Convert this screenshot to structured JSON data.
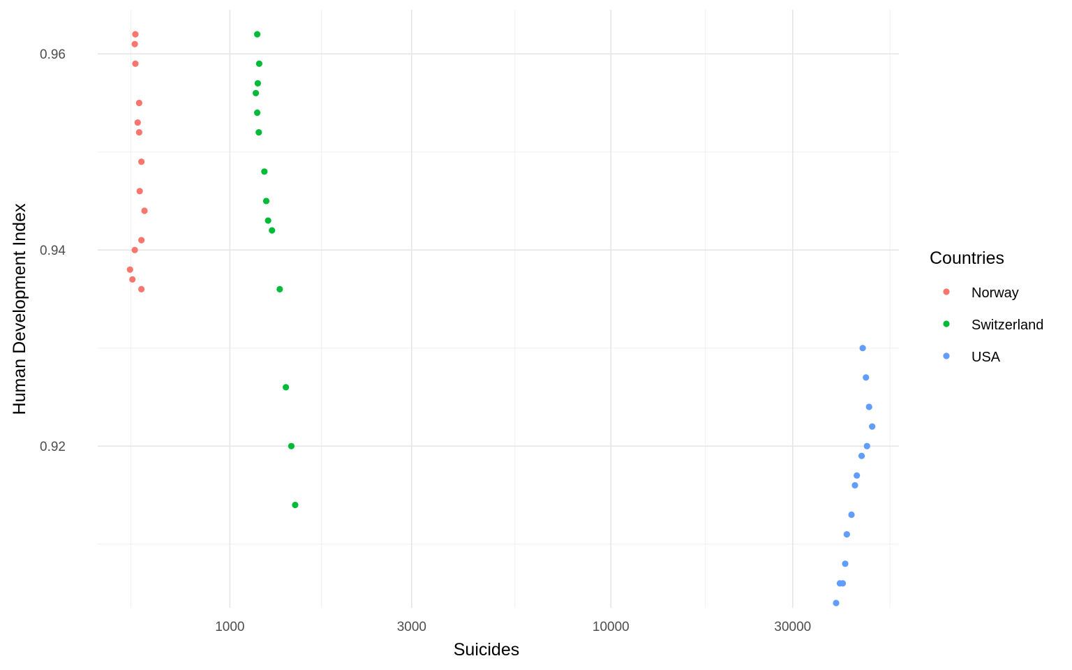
{
  "chart_data": {
    "type": "scatter",
    "xlabel": "Suicides",
    "ylabel": "Human Development Index",
    "x_scale": "log10",
    "xlim": [
      450,
      57000
    ],
    "ylim": [
      0.9035,
      0.9645
    ],
    "x_ticks": [
      {
        "value": 1000,
        "label": "1000"
      },
      {
        "value": 3000,
        "label": "3000"
      },
      {
        "value": 10000,
        "label": "10000"
      },
      {
        "value": 30000,
        "label": "30000"
      }
    ],
    "x_minor_ticks": [
      550,
      1740,
      5600,
      17700,
      54000
    ],
    "y_ticks": [
      {
        "value": 0.92,
        "label": "0.92"
      },
      {
        "value": 0.94,
        "label": "0.94"
      },
      {
        "value": 0.96,
        "label": "0.96"
      }
    ],
    "y_minor_ticks": [
      0.91,
      0.93,
      0.95
    ],
    "grid": true,
    "legend": {
      "title": "Countries",
      "position": "right"
    },
    "series": [
      {
        "name": "Norway",
        "color": "#F8766D",
        "points": [
          {
            "x": 565,
            "y": 0.962
          },
          {
            "x": 563,
            "y": 0.961
          },
          {
            "x": 565,
            "y": 0.959
          },
          {
            "x": 578,
            "y": 0.955
          },
          {
            "x": 573,
            "y": 0.953
          },
          {
            "x": 578,
            "y": 0.952
          },
          {
            "x": 586,
            "y": 0.949
          },
          {
            "x": 580,
            "y": 0.946
          },
          {
            "x": 597,
            "y": 0.944
          },
          {
            "x": 586,
            "y": 0.941
          },
          {
            "x": 563,
            "y": 0.94
          },
          {
            "x": 547,
            "y": 0.938
          },
          {
            "x": 555,
            "y": 0.937
          },
          {
            "x": 586,
            "y": 0.936
          }
        ]
      },
      {
        "name": "Switzerland",
        "color": "#00BA38",
        "points": [
          {
            "x": 1180,
            "y": 0.962
          },
          {
            "x": 1194,
            "y": 0.959
          },
          {
            "x": 1184,
            "y": 0.957
          },
          {
            "x": 1170,
            "y": 0.956
          },
          {
            "x": 1180,
            "y": 0.954
          },
          {
            "x": 1191,
            "y": 0.952
          },
          {
            "x": 1232,
            "y": 0.948
          },
          {
            "x": 1246,
            "y": 0.945
          },
          {
            "x": 1260,
            "y": 0.943
          },
          {
            "x": 1290,
            "y": 0.942
          },
          {
            "x": 1352,
            "y": 0.936
          },
          {
            "x": 1403,
            "y": 0.926
          },
          {
            "x": 1450,
            "y": 0.92
          },
          {
            "x": 1484,
            "y": 0.914
          }
        ]
      },
      {
        "name": "USA",
        "color": "#619CFF",
        "points": [
          {
            "x": 45800,
            "y": 0.93
          },
          {
            "x": 46700,
            "y": 0.927
          },
          {
            "x": 47600,
            "y": 0.924
          },
          {
            "x": 48500,
            "y": 0.922
          },
          {
            "x": 47000,
            "y": 0.92
          },
          {
            "x": 45500,
            "y": 0.919
          },
          {
            "x": 44200,
            "y": 0.917
          },
          {
            "x": 43700,
            "y": 0.916
          },
          {
            "x": 42800,
            "y": 0.913
          },
          {
            "x": 41600,
            "y": 0.911
          },
          {
            "x": 41200,
            "y": 0.908
          },
          {
            "x": 39900,
            "y": 0.906
          },
          {
            "x": 40600,
            "y": 0.906
          },
          {
            "x": 39000,
            "y": 0.904
          }
        ]
      }
    ]
  }
}
